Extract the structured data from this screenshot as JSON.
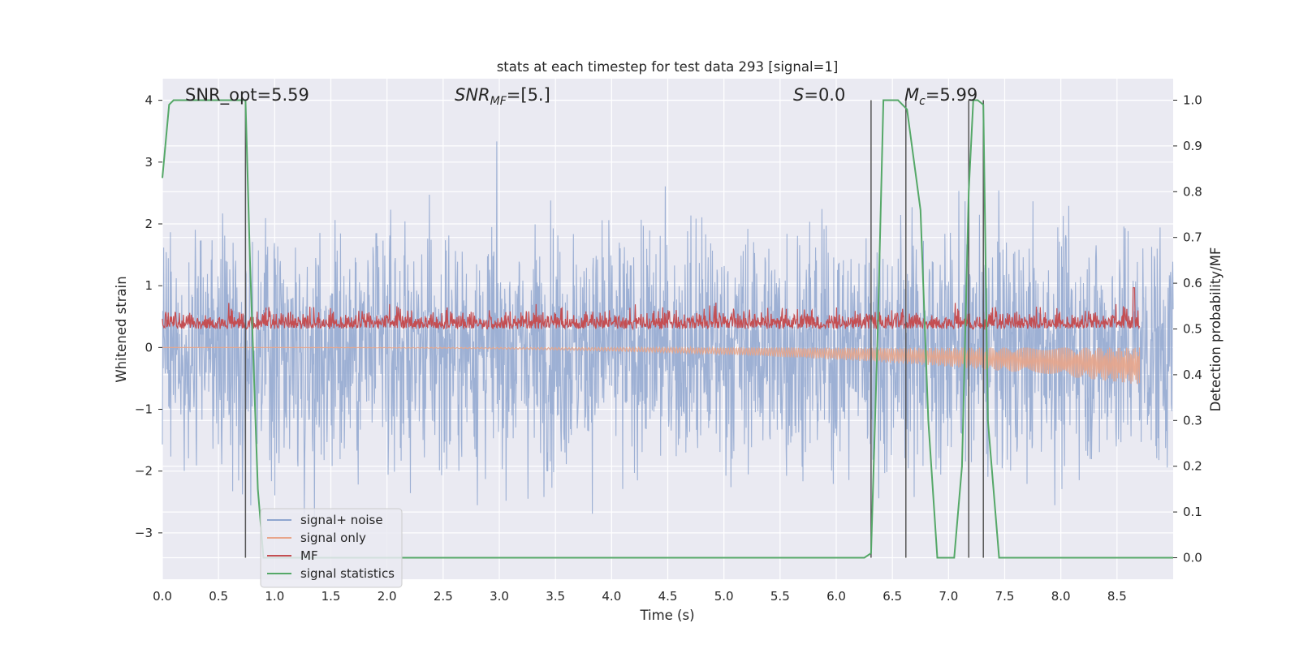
{
  "chart_data": {
    "type": "line",
    "title": "stats at each timestep for test data 293 [signal=1]",
    "xlabel": "Time (s)",
    "ylabel": "Whitened strain",
    "ylabel_right": "Detection probability/MF",
    "xlim": [
      0.0,
      9.0
    ],
    "ylim": [
      -3.75,
      4.35
    ],
    "ylim_right": [
      -0.047,
      1.047
    ],
    "xticks": [
      "0.0",
      "0.5",
      "1.0",
      "1.5",
      "2.0",
      "2.5",
      "3.0",
      "3.5",
      "4.0",
      "4.5",
      "5.0",
      "5.5",
      "6.0",
      "6.5",
      "7.0",
      "7.5",
      "8.0",
      "8.5"
    ],
    "yticks": [
      "4",
      "3",
      "2",
      "1",
      "0",
      "−1",
      "−2",
      "−3"
    ],
    "yticks_right": [
      "1.0",
      "0.9",
      "0.8",
      "0.7",
      "0.6",
      "0.5",
      "0.4",
      "0.3",
      "0.2",
      "0.1",
      "0.0"
    ],
    "grid": true,
    "legend_position": "lower-left",
    "annotations": {
      "snr_opt": "SNR_opt=5.59",
      "snr_mf": "SNR",
      "snr_mf_sub": "MF",
      "snr_mf_value": "=[5.]",
      "s_label": "S",
      "s_value": "=0.0",
      "mc_label": "M",
      "mc_sub": "c",
      "mc_value": "=5.99"
    },
    "series": [
      {
        "name": "signal+ noise",
        "color": "#8fa6cf",
        "description_values": {
          "amplitude_std": 0.95,
          "range": [
            -3.3,
            4.0
          ]
        }
      },
      {
        "name": "signal only",
        "color": "#e8a58a",
        "x_start": 0.0,
        "x_end": 8.7,
        "envelope_end": -0.6
      },
      {
        "name": "MF",
        "color": "#c44e52",
        "axis": "right",
        "baseline": 0.5,
        "range": [
          0.45,
          0.6
        ],
        "spike": {
          "x": 8.65,
          "y": 0.59
        }
      },
      {
        "name": "signal statistics",
        "color": "#55a868",
        "axis": "right",
        "x": [
          0.0,
          0.06,
          0.1,
          0.6,
          0.74,
          0.78,
          0.85,
          0.9,
          6.25,
          6.31,
          6.37,
          6.42,
          6.55,
          6.63,
          6.75,
          6.82,
          6.9,
          7.05,
          7.12,
          7.18,
          7.22,
          7.26,
          7.31,
          7.35,
          7.45,
          9.0
        ],
        "y": [
          0.83,
          0.99,
          1.0,
          1.0,
          1.0,
          0.65,
          0.15,
          0.0,
          0.0,
          0.01,
          0.5,
          1.0,
          1.0,
          0.98,
          0.76,
          0.3,
          0.0,
          0.0,
          0.2,
          0.8,
          1.0,
          1.0,
          0.99,
          0.3,
          0.0,
          0.0
        ]
      }
    ],
    "vertical_markers": [
      0.74,
      6.31,
      6.62,
      7.18,
      7.31
    ],
    "colors": {
      "background": "#eaeaf2",
      "grid": "#ffffff",
      "marker": "#555555",
      "text": "#262626"
    }
  }
}
